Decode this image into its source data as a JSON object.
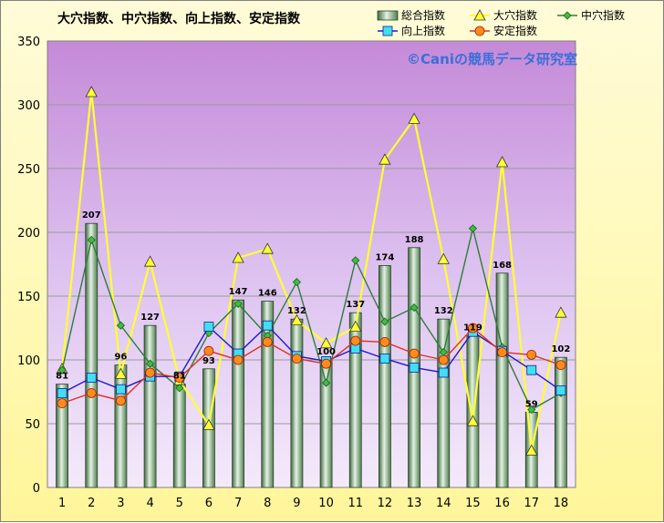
{
  "chart_data": {
    "type": "bar",
    "title": "大穴指数、中穴指数、向上指数、安定指数",
    "watermark": "©Caniの競馬データ研究室",
    "categories": [
      "1",
      "2",
      "3",
      "4",
      "5",
      "6",
      "7",
      "8",
      "9",
      "10",
      "11",
      "12",
      "13",
      "14",
      "15",
      "16",
      "17",
      "18"
    ],
    "ylim": [
      0,
      350
    ],
    "yticks": [
      0,
      50,
      100,
      150,
      200,
      250,
      300,
      350
    ],
    "grid": true,
    "legend": "top-right",
    "series": [
      {
        "name": "総合指数",
        "type": "bar",
        "color": "#6f9a6f",
        "values": [
          81,
          207,
          96,
          127,
          81,
          93,
          147,
          146,
          132,
          100,
          137,
          174,
          188,
          132,
          119,
          168,
          59,
          102
        ],
        "labels": [
          "81",
          "207",
          "96",
          "127",
          "81",
          "93",
          "147",
          "146",
          "132",
          "100",
          "137",
          "174",
          "188",
          "132",
          "119",
          "168",
          "59",
          "102"
        ]
      },
      {
        "name": "大穴指数",
        "type": "line",
        "color": "#ffff33",
        "marker": "triangle",
        "values": [
          93,
          310,
          89,
          177,
          84,
          49,
          180,
          187,
          131,
          113,
          126,
          257,
          289,
          179,
          52,
          255,
          29,
          137
        ]
      },
      {
        "name": "中穴指数",
        "type": "line",
        "color": "#2e7d3a",
        "marker": "diamond",
        "values": [
          92,
          194,
          127,
          97,
          78,
          121,
          144,
          119,
          161,
          82,
          178,
          130,
          141,
          106,
          203,
          110,
          61,
          74
        ]
      },
      {
        "name": "向上指数",
        "type": "line",
        "color": "#1a1acc",
        "marker": "square",
        "values": [
          74,
          86,
          77,
          87,
          87,
          126,
          105,
          127,
          103,
          99,
          109,
          101,
          94,
          90,
          122,
          107,
          92,
          76
        ]
      },
      {
        "name": "安定指数",
        "type": "line",
        "color": "#e03020",
        "marker": "circle",
        "values": [
          66,
          74,
          68,
          90,
          86,
          107,
          100,
          114,
          101,
          97,
          115,
          114,
          105,
          100,
          125,
          106,
          104,
          96
        ]
      }
    ]
  }
}
